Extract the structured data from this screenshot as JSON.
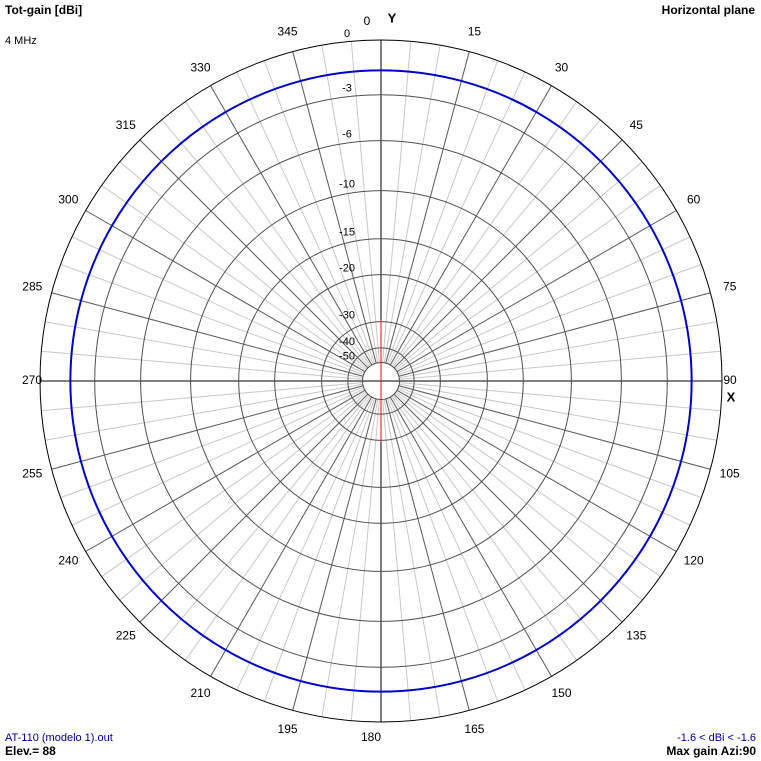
{
  "chart_data": {
    "type": "polar",
    "title": "Tot-gain [dBi]",
    "subtitle": "4 MHz",
    "plane": "Horizontal plane",
    "y_axis_label": "Y",
    "x_axis_label": "X",
    "file": "AT-110 (modelo 1).out",
    "elevation": "Elev.= 88",
    "gain_range": "-1.6 < dBi < -1.6",
    "max_gain": "Max gain Azi:90",
    "rlim": [
      -50,
      0
    ],
    "rticks": [
      0,
      -3,
      -6,
      -10,
      -15,
      -20,
      -30,
      -40,
      -50
    ],
    "thetaticks": [
      0,
      15,
      30,
      45,
      60,
      75,
      90,
      105,
      120,
      135,
      150,
      165,
      180,
      195,
      210,
      225,
      240,
      255,
      270,
      285,
      300,
      315,
      330,
      345
    ],
    "theta_minor_step": 5,
    "series": [
      {
        "color": "#0000c8",
        "theta": [
          0,
          30,
          60,
          90,
          120,
          150,
          180,
          210,
          240,
          270,
          300,
          330,
          360
        ],
        "values": [
          -1.6,
          -1.6,
          -1.6,
          -1.6,
          -1.6,
          -1.6,
          -1.6,
          -1.6,
          -1.6,
          -1.6,
          -1.6,
          -1.6,
          -1.6
        ]
      }
    ]
  }
}
